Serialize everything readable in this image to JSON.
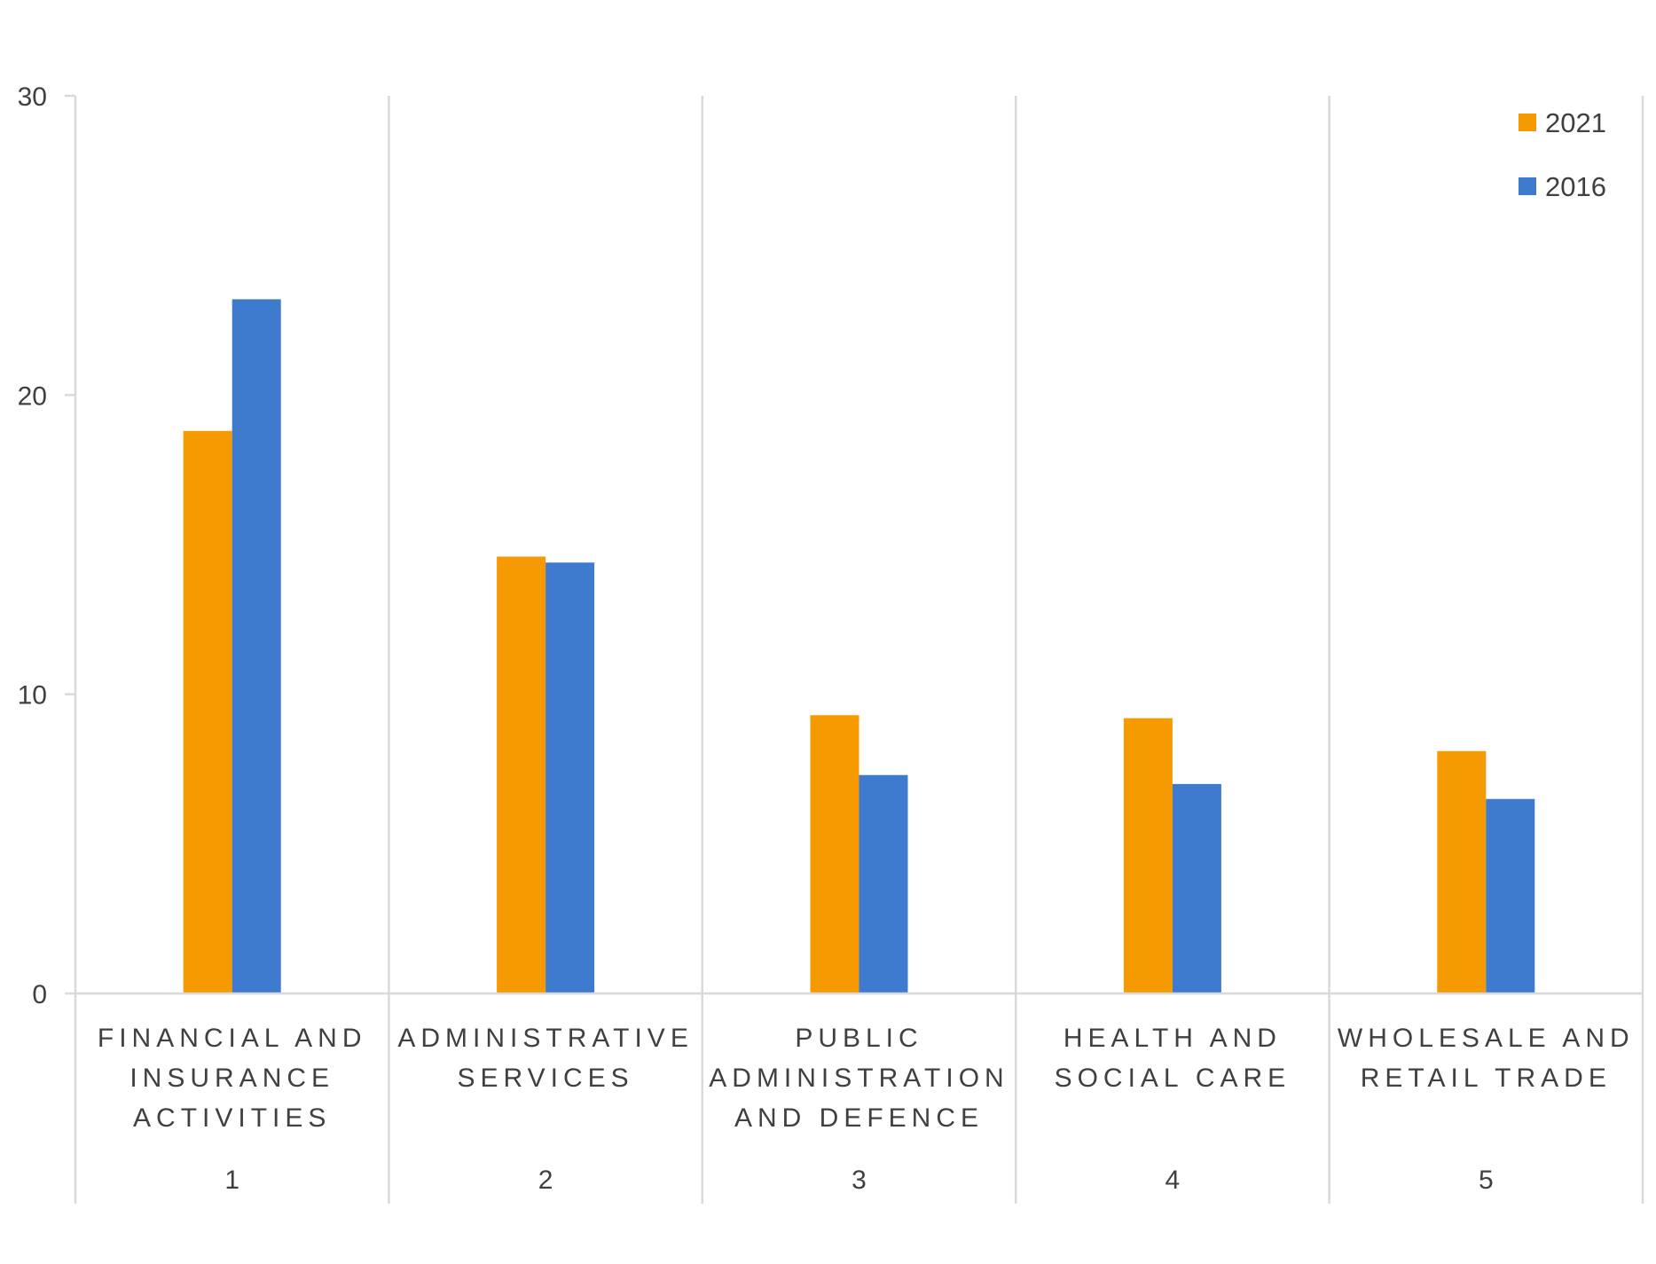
{
  "chart_data": {
    "type": "bar",
    "title": "",
    "xlabel": "",
    "ylabel": "",
    "ylim": [
      0,
      30
    ],
    "yticks": [
      0,
      10,
      20,
      30
    ],
    "grid": "vertical category separators",
    "legend_position": "top-right",
    "categories": [
      {
        "lines": [
          "FINANCIAL AND",
          "INSURANCE",
          "ACTIVITIES"
        ],
        "rank": "1"
      },
      {
        "lines": [
          "ADMINISTRATIVE",
          "SERVICES"
        ],
        "rank": "2"
      },
      {
        "lines": [
          "PUBLIC",
          "ADMINISTRATION",
          "AND DEFENCE"
        ],
        "rank": "3"
      },
      {
        "lines": [
          "HEALTH AND",
          "SOCIAL CARE"
        ],
        "rank": "4"
      },
      {
        "lines": [
          "WHOLESALE AND",
          "RETAIL TRADE"
        ],
        "rank": "5"
      }
    ],
    "series": [
      {
        "name": "2021",
        "color": "#F59A00",
        "values": [
          18.8,
          14.6,
          9.3,
          9.2,
          8.1
        ]
      },
      {
        "name": "2016",
        "color": "#3E7BCF",
        "values": [
          23.2,
          14.4,
          7.3,
          7.0,
          6.5
        ]
      }
    ]
  }
}
